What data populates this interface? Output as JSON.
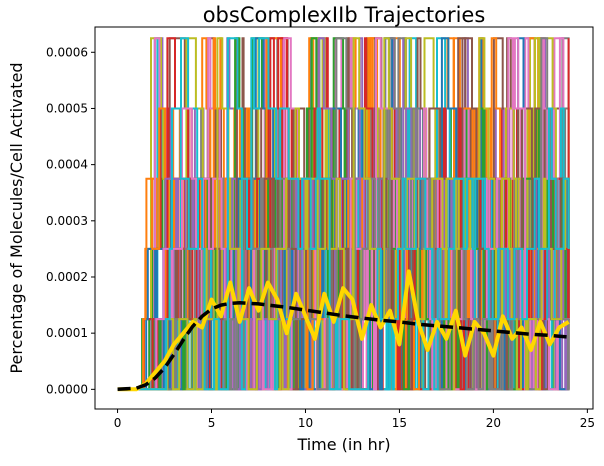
{
  "chart_data": {
    "type": "line",
    "title": "obsComplexIIb Trajectories",
    "xlabel": "Time (in hr)",
    "ylabel": "Percentage of Molecules/Cell Activated",
    "xlim": [
      -1.2,
      25.3
    ],
    "ylim": [
      -3.5e-05,
      0.000645
    ],
    "x_ticks": [
      0,
      5,
      10,
      15,
      20,
      25
    ],
    "y_ticks": [
      0,
      0.0001,
      0.0002,
      0.0003,
      0.0004,
      0.0005,
      0.0006
    ],
    "x_tick_labels": [
      "0",
      "5",
      "10",
      "15",
      "20",
      "25"
    ],
    "y_tick_labels": [
      "0.0000",
      "0.0001",
      "0.0002",
      "0.0003",
      "0.0004",
      "0.0005",
      "0.0006"
    ],
    "grid": false,
    "legend": "none",
    "trajectory_levels": [
      0,
      0.000125,
      0.00025,
      0.000375,
      0.0005,
      0.000625
    ],
    "trajectory_colors": [
      "#1f77b4",
      "#ff7f0e",
      "#2ca02c",
      "#d62728",
      "#9467bd",
      "#8c564b",
      "#e377c2",
      "#7f7f7f",
      "#bcbd22",
      "#17becf"
    ],
    "series": [
      {
        "style": "mean",
        "color": "#000000",
        "linestyle": "dashed",
        "x": [
          0,
          1,
          1.5,
          2,
          2.5,
          3,
          3.5,
          4,
          4.5,
          5,
          5.5,
          6,
          6.5,
          7,
          7.5,
          8,
          9,
          10,
          11,
          12,
          13,
          14,
          15,
          16,
          17,
          18,
          19,
          20,
          21,
          22,
          23,
          24
        ],
        "y": [
          0,
          2e-06,
          8e-06,
          2e-05,
          3.8e-05,
          6.2e-05,
          8.8e-05,
          0.000112,
          0.00013,
          0.000143,
          0.00015,
          0.000153,
          0.000154,
          0.000153,
          0.000152,
          0.00015,
          0.000146,
          0.000141,
          0.000136,
          0.000131,
          0.000127,
          0.000123,
          0.00012,
          0.000116,
          0.000113,
          0.00011,
          0.000107,
          0.000104,
          0.000101,
          9.8e-05,
          9.6e-05,
          9.3e-05
        ]
      },
      {
        "style": "average-trajectory",
        "color": "#ffd700",
        "x": [
          0,
          1,
          1.5,
          2,
          2.5,
          3,
          3.5,
          4,
          4.5,
          5,
          5.5,
          6,
          6.5,
          7,
          7.5,
          8,
          8.5,
          9,
          9.5,
          10,
          10.5,
          11,
          11.5,
          12,
          12.5,
          13,
          13.5,
          14,
          14.5,
          15,
          15.5,
          16,
          16.5,
          17,
          17.5,
          18,
          18.5,
          19,
          19.5,
          20,
          20.5,
          21,
          21.5,
          22,
          22.5,
          23,
          23.5,
          24
        ],
        "y": [
          0,
          0,
          1e-05,
          3e-05,
          5e-05,
          8e-05,
          0.0001,
          0.00012,
          0.00011,
          0.00016,
          0.00013,
          0.00019,
          0.00012,
          0.00018,
          0.00014,
          0.00019,
          0.00016,
          0.0001,
          0.00017,
          0.00013,
          9e-05,
          0.00017,
          0.00012,
          0.00018,
          0.00016,
          9e-05,
          0.00015,
          0.00011,
          0.00014,
          8e-05,
          0.00021,
          0.00012,
          7e-05,
          0.00012,
          9e-05,
          0.00014,
          6e-05,
          0.00012,
          0.0001,
          6e-05,
          0.00013,
          9e-05,
          0.00011,
          7e-05,
          0.00012,
          8e-05,
          0.00011,
          0.00012
        ]
      }
    ]
  }
}
